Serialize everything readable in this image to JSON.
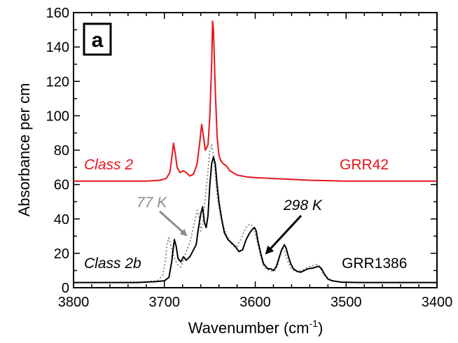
{
  "chart_data": {
    "type": "line",
    "panel_label": "a",
    "xlabel": "Wavenumber (cm",
    "xlabel_sup": "-1",
    "xlabel_close": ")",
    "ylabel": "Absorbance per cm",
    "xlim": [
      3800,
      3400
    ],
    "ylim": [
      0,
      160
    ],
    "x_ticks": [
      3800,
      3700,
      3600,
      3500,
      3400
    ],
    "y_ticks": [
      0,
      20,
      40,
      60,
      80,
      100,
      120,
      140,
      160
    ],
    "grid": false,
    "series": [
      {
        "name": "Class 2",
        "sample": "GRR42",
        "color": "#e8141c",
        "style": "solid",
        "points": [
          [
            3800,
            62
          ],
          [
            3760,
            62
          ],
          [
            3720,
            62
          ],
          [
            3705,
            62.5
          ],
          [
            3698,
            63.5
          ],
          [
            3694,
            67
          ],
          [
            3692,
            75
          ],
          [
            3690,
            84
          ],
          [
            3688,
            78
          ],
          [
            3686,
            70
          ],
          [
            3683,
            67
          ],
          [
            3679,
            68
          ],
          [
            3676,
            67
          ],
          [
            3672,
            65
          ],
          [
            3668,
            66
          ],
          [
            3664,
            72
          ],
          [
            3661,
            85
          ],
          [
            3659,
            95
          ],
          [
            3657,
            88
          ],
          [
            3655,
            80
          ],
          [
            3652,
            83
          ],
          [
            3650,
            100
          ],
          [
            3648,
            130
          ],
          [
            3647,
            155
          ],
          [
            3646,
            150
          ],
          [
            3644,
            115
          ],
          [
            3642,
            88
          ],
          [
            3640,
            77
          ],
          [
            3638,
            74
          ],
          [
            3635,
            72
          ],
          [
            3632,
            71
          ],
          [
            3628,
            68
          ],
          [
            3620,
            65.5
          ],
          [
            3610,
            64.5
          ],
          [
            3600,
            64
          ],
          [
            3580,
            63.5
          ],
          [
            3560,
            63
          ],
          [
            3540,
            62.5
          ],
          [
            3500,
            62
          ],
          [
            3450,
            62
          ],
          [
            3400,
            62
          ]
        ]
      },
      {
        "name": "298 K",
        "sample": "GRR1386",
        "color": "#000000",
        "style": "solid",
        "points": [
          [
            3800,
            3
          ],
          [
            3760,
            3
          ],
          [
            3730,
            3
          ],
          [
            3710,
            3.5
          ],
          [
            3700,
            4
          ],
          [
            3695,
            6
          ],
          [
            3692,
            15
          ],
          [
            3690,
            24
          ],
          [
            3689,
            28
          ],
          [
            3687,
            24
          ],
          [
            3685,
            17
          ],
          [
            3682,
            15
          ],
          [
            3679,
            18
          ],
          [
            3676,
            16
          ],
          [
            3672,
            18
          ],
          [
            3668,
            22
          ],
          [
            3665,
            25
          ],
          [
            3663,
            33
          ],
          [
            3660,
            43
          ],
          [
            3658,
            47
          ],
          [
            3656,
            38
          ],
          [
            3654,
            35
          ],
          [
            3652,
            42
          ],
          [
            3650,
            60
          ],
          [
            3648,
            72
          ],
          [
            3646,
            76
          ],
          [
            3644,
            72
          ],
          [
            3642,
            60
          ],
          [
            3640,
            50
          ],
          [
            3637,
            40
          ],
          [
            3634,
            32
          ],
          [
            3630,
            28
          ],
          [
            3626,
            26
          ],
          [
            3622,
            24
          ],
          [
            3618,
            21
          ],
          [
            3614,
            22
          ],
          [
            3610,
            28
          ],
          [
            3606,
            32
          ],
          [
            3603,
            34
          ],
          [
            3601,
            35
          ],
          [
            3599,
            33
          ],
          [
            3597,
            27
          ],
          [
            3594,
            20
          ],
          [
            3591,
            14
          ],
          [
            3588,
            12
          ],
          [
            3586,
            11
          ],
          [
            3583,
            11
          ],
          [
            3580,
            10
          ],
          [
            3577,
            12
          ],
          [
            3574,
            17
          ],
          [
            3571,
            22
          ],
          [
            3568,
            25
          ],
          [
            3566,
            23
          ],
          [
            3564,
            19
          ],
          [
            3561,
            14
          ],
          [
            3558,
            11
          ],
          [
            3554,
            9.5
          ],
          [
            3550,
            9
          ],
          [
            3546,
            10
          ],
          [
            3542,
            11
          ],
          [
            3536,
            11.5
          ],
          [
            3530,
            12.5
          ],
          [
            3527,
            11
          ],
          [
            3524,
            8
          ],
          [
            3520,
            5
          ],
          [
            3515,
            4
          ],
          [
            3505,
            3.2
          ],
          [
            3480,
            3
          ],
          [
            3400,
            3
          ]
        ]
      },
      {
        "name": "77 K",
        "sample": "GRR1386",
        "color": "#8c8c8c",
        "style": "dotted",
        "points": [
          [
            3800,
            3
          ],
          [
            3750,
            3
          ],
          [
            3720,
            3.5
          ],
          [
            3708,
            4
          ],
          [
            3702,
            7
          ],
          [
            3699,
            15
          ],
          [
            3697,
            26
          ],
          [
            3695,
            29
          ],
          [
            3693,
            25
          ],
          [
            3691,
            20
          ],
          [
            3688,
            16
          ],
          [
            3685,
            13
          ],
          [
            3682,
            12
          ],
          [
            3679,
            16
          ],
          [
            3676,
            21
          ],
          [
            3672,
            26
          ],
          [
            3669,
            33
          ],
          [
            3666,
            40
          ],
          [
            3664,
            45
          ],
          [
            3662,
            42
          ],
          [
            3660,
            33
          ],
          [
            3658,
            37
          ],
          [
            3655,
            52
          ],
          [
            3652,
            68
          ],
          [
            3650,
            80
          ],
          [
            3648,
            83
          ],
          [
            3646,
            78
          ],
          [
            3644,
            66
          ],
          [
            3642,
            54
          ],
          [
            3639,
            44
          ],
          [
            3636,
            37
          ],
          [
            3632,
            31
          ],
          [
            3628,
            27
          ],
          [
            3624,
            24
          ],
          [
            3620,
            24
          ],
          [
            3616,
            28
          ],
          [
            3612,
            33
          ],
          [
            3609,
            36
          ],
          [
            3606,
            37
          ],
          [
            3603,
            36
          ],
          [
            3600,
            31
          ],
          [
            3597,
            25
          ],
          [
            3594,
            18
          ],
          [
            3591,
            13
          ],
          [
            3588,
            11
          ],
          [
            3585,
            10
          ],
          [
            3582,
            9.5
          ],
          [
            3578,
            10
          ],
          [
            3575,
            14
          ],
          [
            3572,
            20
          ],
          [
            3570,
            23
          ],
          [
            3568,
            22
          ],
          [
            3566,
            18
          ],
          [
            3563,
            14
          ],
          [
            3560,
            11
          ],
          [
            3556,
            9.5
          ],
          [
            3552,
            9.5
          ],
          [
            3547,
            10.5
          ],
          [
            3542,
            12
          ],
          [
            3536,
            13
          ],
          [
            3532,
            13.5
          ],
          [
            3529,
            12
          ],
          [
            3526,
            9
          ],
          [
            3522,
            6
          ],
          [
            3518,
            4.5
          ],
          [
            3510,
            3.5
          ],
          [
            3490,
            3
          ],
          [
            3400,
            3
          ]
        ]
      }
    ],
    "annotations": {
      "class2_label": "Class 2",
      "grr42_label": "GRR42",
      "k77_label": "77 K",
      "k298_label": "298 K",
      "class2b_label": "Class 2b",
      "grr1386_label": "GRR1386"
    }
  }
}
